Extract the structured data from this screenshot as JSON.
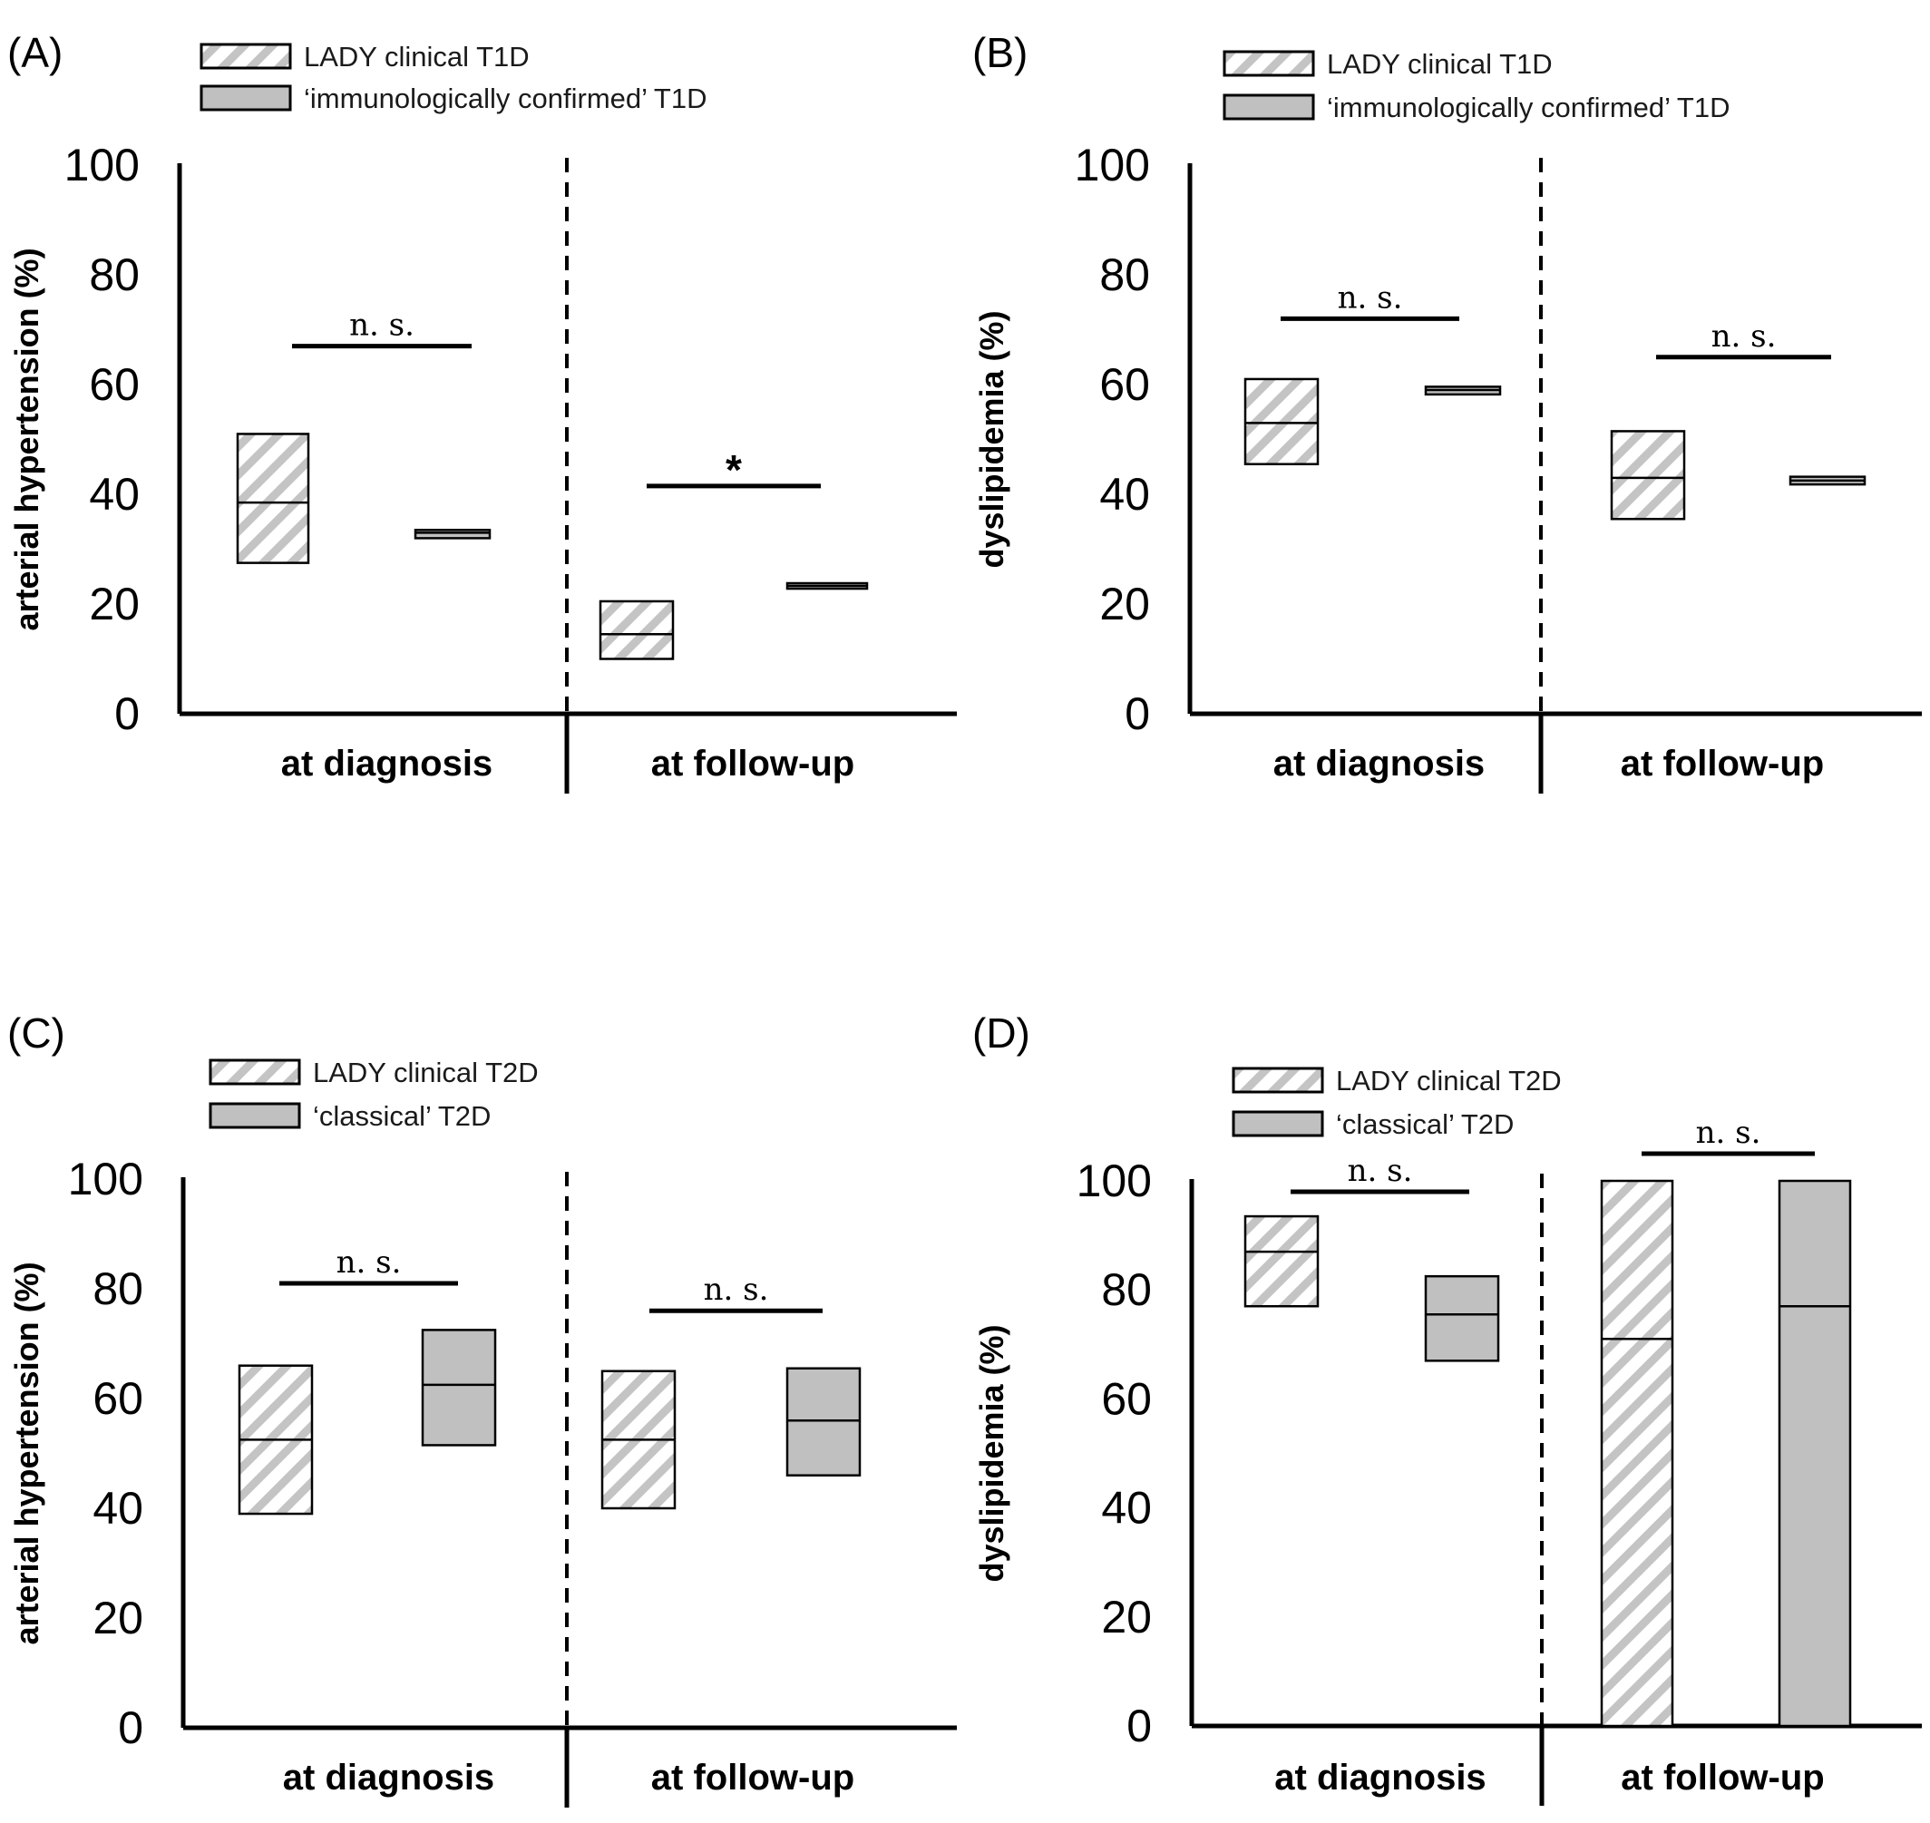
{
  "colors": {
    "hatch_stroke": "#c4c4c4",
    "gray_fill": "#c0c0c0",
    "axis": "#000000"
  },
  "chart_data": [
    {
      "type": "box",
      "panel": "(A)",
      "ylabel": "arterial hypertension (%)",
      "ylim": [
        0,
        100
      ],
      "yticks": [
        "0",
        "20",
        "40",
        "60",
        "80",
        "100"
      ],
      "categories": [
        "at diagnosis",
        "at follow-up"
      ],
      "legend": [
        "LADY clinical T1D",
        "‘immunologically confirmed’ T1D"
      ],
      "series": [
        {
          "name": "LADY clinical T1D",
          "style": "hatch",
          "boxes": [
            {
              "low": 27.5,
              "mid": 38.5,
              "high": 51
            },
            {
              "low": 10,
              "mid": 14.5,
              "high": 20.5
            }
          ]
        },
        {
          "name": "‘immunologically confirmed’ T1D",
          "style": "gray",
          "boxes": [
            {
              "low": 32,
              "mid": 33,
              "high": 33.5
            },
            {
              "low": 22.8,
              "mid": 23.3,
              "high": 23.8
            }
          ]
        }
      ],
      "significance": [
        {
          "group": 0,
          "label": "n. s.",
          "y": 67
        },
        {
          "group": 1,
          "label": "*",
          "y": 41.5
        }
      ],
      "legend_position": "top"
    },
    {
      "type": "box",
      "panel": "(B)",
      "ylabel": "dyslipidemia (%)",
      "ylim": [
        0,
        100
      ],
      "yticks": [
        "0",
        "20",
        "40",
        "60",
        "80",
        "100"
      ],
      "categories": [
        "at diagnosis",
        "at follow-up"
      ],
      "legend": [
        "LADY clinical T1D",
        "‘immunologically confirmed’ T1D"
      ],
      "series": [
        {
          "name": "LADY clinical T1D",
          "style": "hatch",
          "boxes": [
            {
              "low": 45.5,
              "mid": 53,
              "high": 61
            },
            {
              "low": 35.5,
              "mid": 43,
              "high": 51.5
            }
          ]
        },
        {
          "name": "‘immunologically confirmed’ T1D",
          "style": "gray",
          "boxes": [
            {
              "low": 58.2,
              "mid": 59,
              "high": 59.6
            },
            {
              "low": 41.8,
              "mid": 42.5,
              "high": 43.2
            }
          ]
        }
      ],
      "significance": [
        {
          "group": 0,
          "label": "n. s.",
          "y": 72
        },
        {
          "group": 1,
          "label": "n. s.",
          "y": 65
        }
      ],
      "legend_position": "top"
    },
    {
      "type": "box",
      "panel": "(C)",
      "ylabel": "arterial hypertension (%)",
      "ylim": [
        0,
        100
      ],
      "yticks": [
        "0",
        "20",
        "40",
        "60",
        "80",
        "100"
      ],
      "categories": [
        "at diagnosis",
        "at follow-up"
      ],
      "legend": [
        "LADY clinical T2D",
        "‘classical’ T2D"
      ],
      "series": [
        {
          "name": "LADY clinical T2D",
          "style": "hatch",
          "boxes": [
            {
              "low": 39,
              "mid": 52.5,
              "high": 66
            },
            {
              "low": 40,
              "mid": 52.5,
              "high": 65
            }
          ]
        },
        {
          "name": "‘classical’ T2D",
          "style": "gray",
          "boxes": [
            {
              "low": 51.5,
              "mid": 62.5,
              "high": 72.5
            },
            {
              "low": 46,
              "mid": 56,
              "high": 65.5
            }
          ]
        }
      ],
      "significance": [
        {
          "group": 0,
          "label": "n. s.",
          "y": 81
        },
        {
          "group": 1,
          "label": "n. s.",
          "y": 76
        }
      ],
      "legend_position": "top"
    },
    {
      "type": "box",
      "panel": "(D)",
      "ylabel": "dyslipidemia (%)",
      "ylim": [
        0,
        100
      ],
      "yticks": [
        "0",
        "20",
        "40",
        "60",
        "80",
        "100"
      ],
      "categories": [
        "at diagnosis",
        "at follow-up"
      ],
      "legend": [
        "LADY clinical T2D",
        "‘classical’ T2D"
      ],
      "series": [
        {
          "name": "LADY clinical T2D",
          "style": "hatch",
          "boxes": [
            {
              "low": 77,
              "mid": 87,
              "high": 93.5
            },
            {
              "low": 0,
              "mid": 71,
              "high": 100
            }
          ]
        },
        {
          "name": "‘classical’ T2D",
          "style": "gray",
          "boxes": [
            {
              "low": 67,
              "mid": 75.5,
              "high": 82.5
            },
            {
              "low": 0,
              "mid": 77,
              "high": 100
            }
          ]
        }
      ],
      "significance": [
        {
          "group": 0,
          "label": "n. s.",
          "y": 98
        },
        {
          "group": 1,
          "label": "n. s.",
          "y": 105
        }
      ],
      "legend_position": "top"
    }
  ]
}
